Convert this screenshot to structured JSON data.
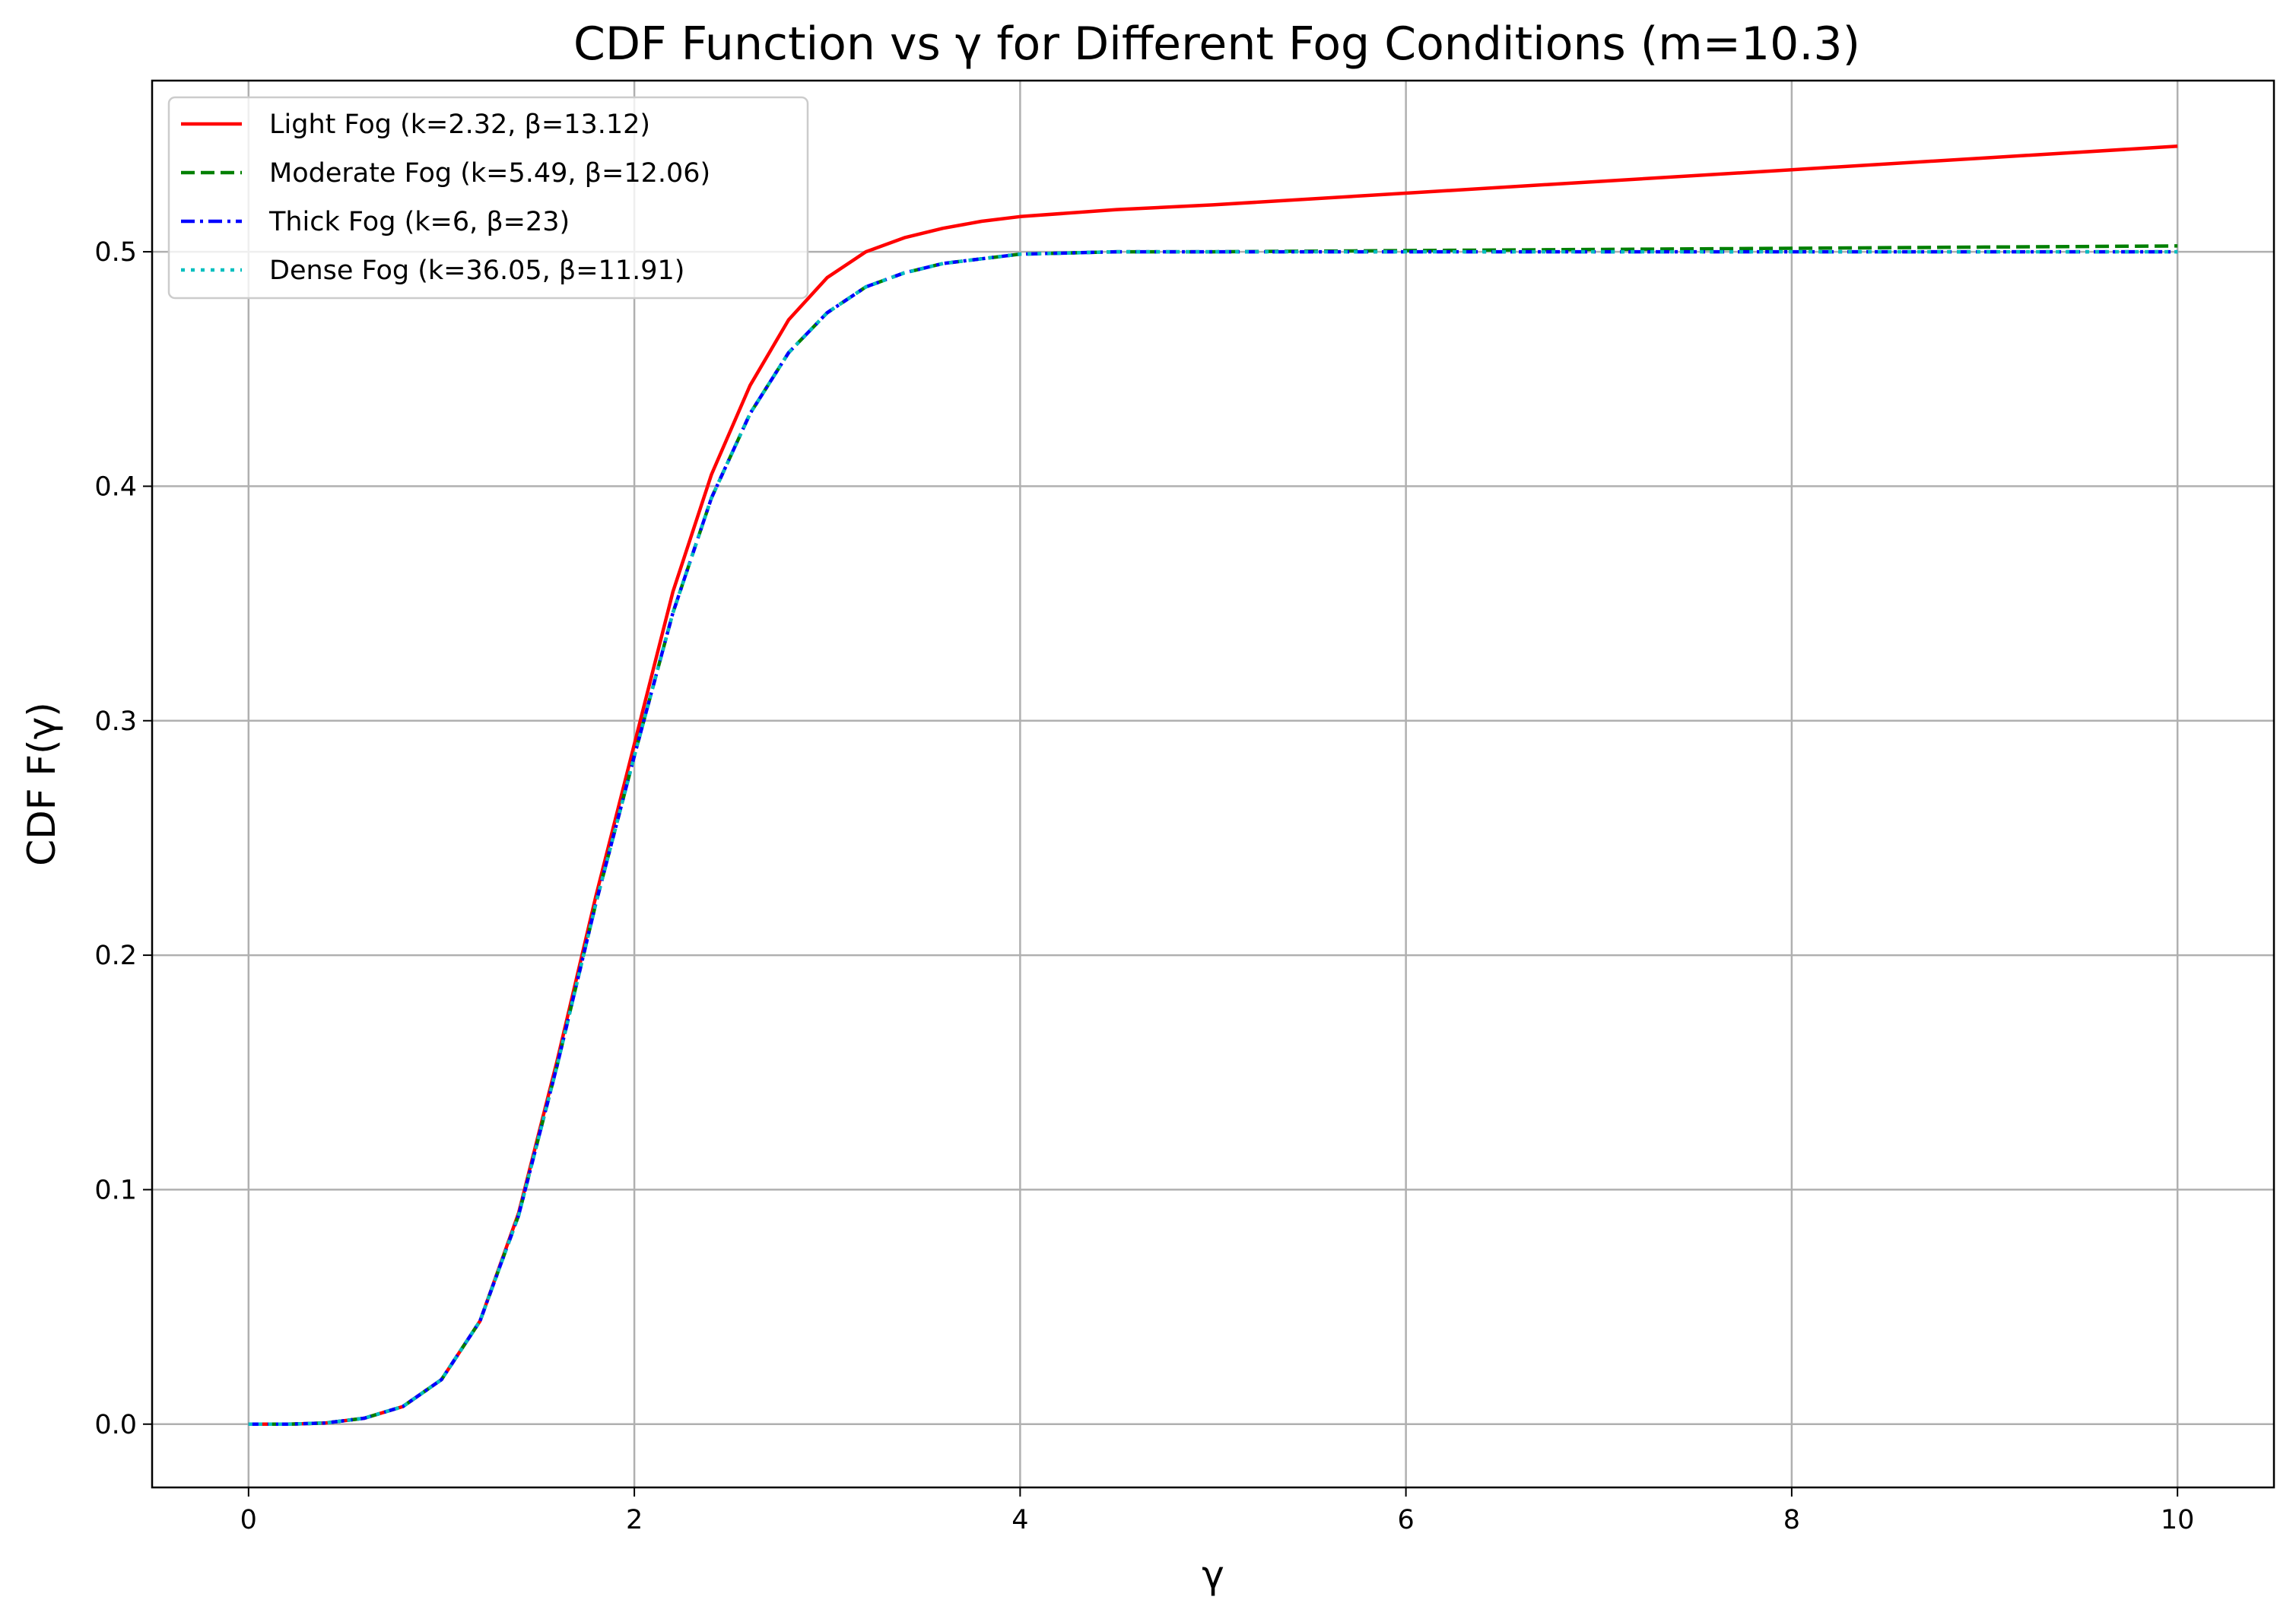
{
  "chart_data": {
    "type": "line",
    "title": "CDF Function vs γ for Different Fog Conditions (m=10.3)",
    "xlabel": "γ",
    "ylabel": "CDF F(γ)",
    "xlim": [
      -0.5,
      10.5
    ],
    "ylim": [
      -0.027,
      0.573
    ],
    "xticks": [
      0,
      2,
      4,
      6,
      8,
      10
    ],
    "xtick_labels": [
      "0",
      "2",
      "4",
      "6",
      "8",
      "10"
    ],
    "yticks": [
      0.0,
      0.1,
      0.2,
      0.3,
      0.4,
      0.5
    ],
    "ytick_labels": [
      "0.0",
      "0.1",
      "0.2",
      "0.3",
      "0.4",
      "0.5"
    ],
    "grid": true,
    "legend_position": "upper-left",
    "x": [
      0,
      0.2,
      0.4,
      0.6,
      0.8,
      1.0,
      1.2,
      1.4,
      1.6,
      1.8,
      2.0,
      2.2,
      2.4,
      2.6,
      2.8,
      3.0,
      3.2,
      3.4,
      3.6,
      3.8,
      4.0,
      4.5,
      5.0,
      6.0,
      7.0,
      8.0,
      9.0,
      10.0
    ],
    "series": [
      {
        "name": "Light Fog (k=2.32, β=13.12)",
        "color": "#ff0000",
        "dash": "solid",
        "values": [
          0.0,
          0.0,
          0.0005,
          0.0025,
          0.0075,
          0.019,
          0.044,
          0.09,
          0.155,
          0.225,
          0.29,
          0.355,
          0.405,
          0.443,
          0.471,
          0.489,
          0.5,
          0.506,
          0.51,
          0.513,
          0.515,
          0.518,
          0.52,
          0.525,
          0.53,
          0.535,
          0.54,
          0.545
        ]
      },
      {
        "name": "Moderate Fog (k=5.49, β=12.06)",
        "color": "#008000",
        "dash": "dashed",
        "values": [
          0.0,
          0.0,
          0.0005,
          0.0025,
          0.0075,
          0.019,
          0.044,
          0.089,
          0.153,
          0.222,
          0.285,
          0.346,
          0.395,
          0.431,
          0.457,
          0.474,
          0.485,
          0.491,
          0.495,
          0.497,
          0.499,
          0.5,
          0.5,
          0.5005,
          0.501,
          0.5015,
          0.502,
          0.5025
        ]
      },
      {
        "name": "Thick Fog (k=6, β=23)",
        "color": "#0000ff",
        "dash": "dashdot",
        "values": [
          0.0,
          0.0,
          0.0005,
          0.0025,
          0.0075,
          0.019,
          0.044,
          0.089,
          0.153,
          0.222,
          0.285,
          0.346,
          0.395,
          0.431,
          0.457,
          0.474,
          0.485,
          0.491,
          0.495,
          0.497,
          0.499,
          0.5,
          0.5,
          0.5,
          0.5,
          0.5,
          0.5,
          0.5
        ]
      },
      {
        "name": "Dense Fog (k=36.05, β=11.91)",
        "color": "#00bfbf",
        "dash": "dotted",
        "values": [
          0.0,
          0.0,
          0.0005,
          0.0025,
          0.0075,
          0.019,
          0.044,
          0.089,
          0.153,
          0.222,
          0.285,
          0.346,
          0.395,
          0.431,
          0.457,
          0.474,
          0.485,
          0.491,
          0.495,
          0.497,
          0.499,
          0.5,
          0.5,
          0.5,
          0.5,
          0.5,
          0.5,
          0.5
        ]
      }
    ]
  }
}
